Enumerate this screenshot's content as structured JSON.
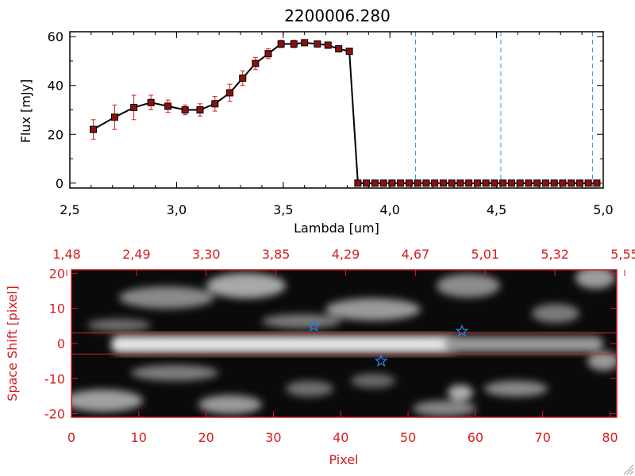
{
  "chart_data": [
    {
      "type": "line",
      "title": "2200006.280",
      "xlabel": "Lambda [um]",
      "ylabel": "Flux [mJy]",
      "xlim": [
        2.5,
        5.0
      ],
      "ylim": [
        -2,
        62
      ],
      "xticks": [
        "2.5",
        "3.0",
        "3.5",
        "4.0",
        "4.5",
        "5.0"
      ],
      "yticks": [
        "0",
        "20",
        "40",
        "60"
      ],
      "x": [
        2.61,
        2.71,
        2.8,
        2.88,
        2.96,
        3.04,
        3.11,
        3.18,
        3.25,
        3.31,
        3.37,
        3.43,
        3.49,
        3.55,
        3.6,
        3.66,
        3.71,
        3.76,
        3.81,
        3.85,
        3.89,
        3.93,
        3.97,
        4.01,
        4.05,
        4.09,
        4.13,
        4.17,
        4.21,
        4.25,
        4.29,
        4.33,
        4.37,
        4.41,
        4.45,
        4.49,
        4.53,
        4.57,
        4.61,
        4.65,
        4.69,
        4.73,
        4.77,
        4.81,
        4.85,
        4.89,
        4.93,
        4.97
      ],
      "y": [
        22,
        27,
        31,
        33,
        31.5,
        30,
        30,
        32.5,
        37,
        43,
        49,
        53,
        57,
        57,
        57.5,
        57,
        56.5,
        55,
        54,
        0,
        0,
        0,
        0,
        0,
        0,
        0,
        0,
        0,
        0,
        0,
        0,
        0,
        0,
        0,
        0,
        0,
        0,
        0,
        0,
        0,
        0,
        0,
        0,
        0,
        0,
        0,
        0,
        0
      ],
      "yerr": [
        4,
        5,
        5,
        3,
        2.5,
        2,
        2.5,
        3,
        3.5,
        3,
        2.5,
        2,
        1.5,
        1.5,
        1,
        1,
        1,
        1,
        1,
        0,
        0,
        0,
        0,
        0,
        0,
        0,
        0,
        0,
        0,
        0,
        0,
        0,
        0,
        0,
        0,
        0,
        0,
        0,
        0,
        0,
        0,
        0,
        0,
        0,
        0,
        0,
        0,
        0
      ],
      "vlines": [
        4.12,
        4.52,
        4.95
      ],
      "colors": {
        "line": "#000000",
        "marker": "#8b1010",
        "error": "#d42020",
        "vline": "#2a9bd6"
      }
    },
    {
      "type": "heatmap",
      "xlabel": "Pixel",
      "ylabel": "Space Shift [pixel]",
      "xlim": [
        0,
        81
      ],
      "ylim": [
        -21,
        21
      ],
      "xticks": [
        "0",
        "10",
        "20",
        "30",
        "40",
        "50",
        "60",
        "70",
        "80"
      ],
      "yticks": [
        "-20",
        "-10",
        "0",
        "10",
        "20"
      ],
      "top_ticks": [
        "1.48",
        "2.49",
        "3.30",
        "3.85",
        "4.29",
        "4.67",
        "5.01",
        "5.32",
        "5.55"
      ],
      "hlines": [
        3,
        -3
      ],
      "stars": [
        {
          "x": 36,
          "y": 5
        },
        {
          "x": 46,
          "y": -5
        },
        {
          "x": 58,
          "y": 3.5
        }
      ],
      "colors": {
        "axis": "#d42020",
        "star": "#2a7fd6",
        "hline": "#d42020"
      }
    }
  ]
}
